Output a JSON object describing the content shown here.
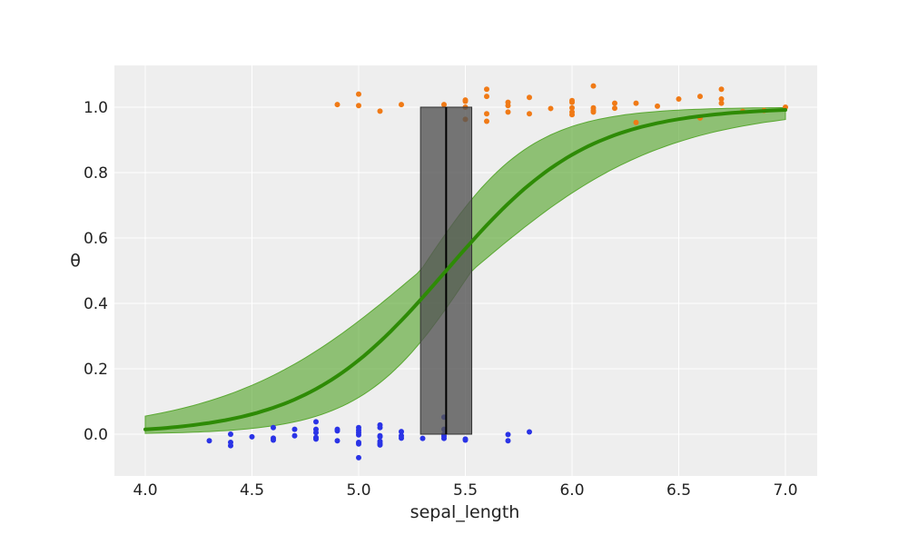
{
  "chart_data": {
    "type": "scatter",
    "title": "",
    "xlabel": "sepal_length",
    "ylabel": "θ",
    "xlim": [
      3.85,
      7.15
    ],
    "ylim": [
      -0.13,
      1.13
    ],
    "grid": true,
    "x_ticks": [
      4.0,
      4.5,
      5.0,
      5.5,
      6.0,
      6.5,
      7.0
    ],
    "x_tick_labels": [
      "4.0",
      "4.5",
      "5.0",
      "5.5",
      "6.0",
      "6.5",
      "7.0"
    ],
    "y_ticks": [
      0.0,
      0.2,
      0.4,
      0.6,
      0.8,
      1.0
    ],
    "y_tick_labels": [
      "0.0",
      "0.2",
      "0.4",
      "0.6",
      "0.8",
      "1.0"
    ],
    "colors": {
      "background": "#eeeeee",
      "grid": "#ffffff",
      "class0_points": "#2a33e6",
      "class1_points": "#f07a16",
      "curve": "#2e8b06",
      "band": "#5aa832",
      "boundary_line": "#000000",
      "boundary_band": "#555555"
    },
    "sigmoid": {
      "x_start": 4.0,
      "x_end": 7.0,
      "midpoint": 5.41,
      "slope": 3.0
    },
    "hdi_band": {
      "inner_slope": 2.2,
      "outer_slope": 3.9,
      "mid_low": 5.29,
      "mid_high": 5.53
    },
    "decision_boundary": {
      "x": 5.41,
      "x_low": 5.29,
      "x_high": 5.53,
      "y_bottom": 0.0,
      "y_top": 1.0
    },
    "series": [
      {
        "class": 0,
        "points": [
          [
            4.3,
            -0.02
          ],
          [
            4.4,
            0.0
          ],
          [
            4.4,
            -0.025
          ],
          [
            4.4,
            -0.035
          ],
          [
            4.5,
            -0.008
          ],
          [
            4.6,
            0.02
          ],
          [
            4.6,
            -0.012
          ],
          [
            4.6,
            -0.018
          ],
          [
            4.7,
            0.015
          ],
          [
            4.7,
            -0.005
          ],
          [
            4.8,
            0.038
          ],
          [
            4.8,
            0.015
          ],
          [
            4.8,
            0.005
          ],
          [
            4.8,
            -0.01
          ],
          [
            4.8,
            -0.015
          ],
          [
            4.9,
            0.015
          ],
          [
            4.9,
            0.01
          ],
          [
            4.9,
            -0.02
          ],
          [
            5.0,
            0.02
          ],
          [
            5.0,
            0.012
          ],
          [
            5.0,
            0.005
          ],
          [
            5.0,
            -0.002
          ],
          [
            5.0,
            -0.025
          ],
          [
            5.0,
            -0.03
          ],
          [
            5.0,
            -0.072
          ],
          [
            5.1,
            0.028
          ],
          [
            5.1,
            0.02
          ],
          [
            5.1,
            -0.005
          ],
          [
            5.1,
            -0.008
          ],
          [
            5.1,
            -0.022
          ],
          [
            5.1,
            -0.028
          ],
          [
            5.1,
            -0.033
          ],
          [
            5.2,
            0.008
          ],
          [
            5.2,
            -0.005
          ],
          [
            5.2,
            -0.012
          ],
          [
            5.3,
            -0.013
          ],
          [
            5.4,
            0.052
          ],
          [
            5.4,
            0.015
          ],
          [
            5.4,
            0.0
          ],
          [
            5.4,
            -0.006
          ],
          [
            5.4,
            -0.013
          ],
          [
            5.5,
            -0.015
          ],
          [
            5.5,
            -0.018
          ],
          [
            5.7,
            -0.001
          ],
          [
            5.7,
            -0.02
          ],
          [
            5.8,
            0.007
          ]
        ]
      },
      {
        "class": 1,
        "points": [
          [
            4.9,
            1.008
          ],
          [
            5.0,
            1.04
          ],
          [
            5.0,
            1.005
          ],
          [
            5.1,
            0.988
          ],
          [
            5.2,
            1.008
          ],
          [
            5.4,
            1.008
          ],
          [
            5.5,
            1.022
          ],
          [
            5.5,
            1.018
          ],
          [
            5.5,
            1.0
          ],
          [
            5.5,
            0.963
          ],
          [
            5.6,
            1.055
          ],
          [
            5.6,
            1.033
          ],
          [
            5.6,
            0.98
          ],
          [
            5.6,
            0.957
          ],
          [
            5.7,
            1.015
          ],
          [
            5.7,
            1.005
          ],
          [
            5.7,
            0.985
          ],
          [
            5.8,
            1.03
          ],
          [
            5.8,
            0.98
          ],
          [
            5.9,
            0.996
          ],
          [
            6.0,
            1.02
          ],
          [
            6.0,
            1.015
          ],
          [
            6.0,
            0.998
          ],
          [
            6.0,
            0.985
          ],
          [
            6.0,
            0.977
          ],
          [
            6.1,
            1.065
          ],
          [
            6.1,
            0.998
          ],
          [
            6.1,
            0.99
          ],
          [
            6.1,
            0.985
          ],
          [
            6.2,
            1.012
          ],
          [
            6.2,
            0.997
          ],
          [
            6.3,
            1.012
          ],
          [
            6.3,
            0.953
          ],
          [
            6.4,
            1.003
          ],
          [
            6.5,
            1.025
          ],
          [
            6.6,
            1.033
          ],
          [
            6.6,
            0.967
          ],
          [
            6.7,
            1.055
          ],
          [
            6.7,
            1.025
          ],
          [
            6.7,
            1.012
          ],
          [
            6.8,
            0.987
          ],
          [
            6.9,
            0.99
          ],
          [
            7.0,
            1.0
          ]
        ]
      }
    ]
  }
}
